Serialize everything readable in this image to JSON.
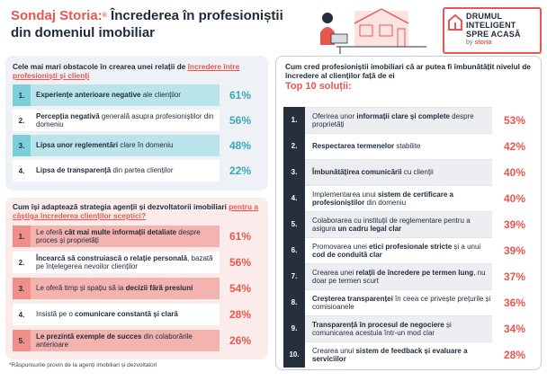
{
  "header": {
    "brand": "Sondaj Storia:",
    "brand_mark": "®",
    "title_rest": " Încrederea în profesioniștii",
    "title_line2": "din domeniul imobiliar"
  },
  "logo": {
    "line1": "DRUMUL",
    "line2": "INTELIGENT",
    "line3": "SPRE ACASĂ",
    "by": "by",
    "brand": "storia"
  },
  "obstacles": {
    "question_pre": "Cele mai mari obstacole în crearea unei relații de ",
    "question_hl": "încredere între profesioniști și clienți",
    "items": [
      {
        "num": "1.",
        "bold": "Experiențe anterioare negative",
        "rest": " ale clienților",
        "pct": "61%"
      },
      {
        "num": "2.",
        "bold": "Percepția negativă",
        "rest": " generală asupra profesioniștilor din domeniu",
        "pct": "56%"
      },
      {
        "num": "3.",
        "bold": "Lipsa unor reglementări",
        "rest": " clare în domeniu",
        "pct": "48%"
      },
      {
        "num": "4.",
        "bold": "Lipsa de transparență",
        "rest": " din partea clienților",
        "pct": "22%"
      }
    ]
  },
  "strategy": {
    "question_pre": "Cum își adaptează strategia agenții și dezvoltatorii imobiliari ",
    "question_hl": "pentru a câștiga încrederea clienților sceptici?",
    "items": [
      {
        "num": "1.",
        "pre": "Le oferă ",
        "bold": "cât mai multe informații detaliate",
        "rest": " despre proces și proprietăți",
        "pct": "61%"
      },
      {
        "num": "2.",
        "pre": "",
        "bold": "Încearcă să construiască o relație personală",
        "rest": ", bazată pe înțelegerea nevoilor clienților",
        "pct": "56%"
      },
      {
        "num": "3.",
        "pre": "Le oferă timp și spațiu să ia ",
        "bold": "decizii fără presiuni",
        "rest": "",
        "pct": "54%"
      },
      {
        "num": "4.",
        "pre": "Insistă pe o ",
        "bold": "comunicare constantă și clară",
        "rest": "",
        "pct": "28%"
      },
      {
        "num": "5.",
        "pre": "",
        "bold": "Le prezintă exemple de succes",
        "rest": " din colaborările anterioare",
        "pct": "26%"
      }
    ]
  },
  "solutions": {
    "question": "Cum cred profesioniștii imobiliari că ar putea fi îmbunătățit nivelul de încredere al clienților față de ei",
    "top_label": "Top 10 soluții:",
    "items": [
      {
        "num": "1.",
        "pre": "Oferirea unor ",
        "bold": "informații clare și complete",
        "rest": " despre proprietăți",
        "pct": "53%"
      },
      {
        "num": "2.",
        "pre": "",
        "bold": "Respectarea termenelor",
        "rest": " stabilite",
        "pct": "42%"
      },
      {
        "num": "3.",
        "pre": "",
        "bold": "Îmbunătățirea comunicării",
        "rest": " cu clienții",
        "pct": "40%"
      },
      {
        "num": "4.",
        "pre": "Implementarea unui ",
        "bold": "sistem de certificare a profesioniștilor",
        "rest": " din domeniu",
        "pct": "40%"
      },
      {
        "num": "5.",
        "pre": "Colaborarea cu instituții de reglementare pentru a asigura ",
        "bold": "un cadru legal clar",
        "rest": "",
        "pct": "39%"
      },
      {
        "num": "6.",
        "pre": "Promovarea unei ",
        "bold": "etici profesionale stricte",
        "rest": " și a unui ",
        "bold2": "cod de conduită clar",
        "pct": "39%"
      },
      {
        "num": "7.",
        "pre": "Crearea unei ",
        "bold": "relații de încredere pe termen lung",
        "rest": ", nu doar pe termen scurt",
        "pct": "37%"
      },
      {
        "num": "8.",
        "pre": "",
        "bold": "Creșterea transparenței",
        "rest": " în ceea ce privește prețurile și comisioanele",
        "pct": "36%"
      },
      {
        "num": "9.",
        "pre": "",
        "bold": "Transparență în procesul de negociere",
        "rest": " și comunicarea acestuia într-un mod clar",
        "pct": "34%"
      },
      {
        "num": "10.",
        "pre": "Crearea unui ",
        "bold": "sistem de feedback și evaluare a serviciilor",
        "rest": "",
        "pct": "28%"
      }
    ]
  },
  "footnote": "*Răspunsurile provin de la agenți imobiliari și dezvoltatori",
  "colors": {
    "accent": "#e8574f",
    "teal": "#3aa9b8",
    "dark": "#26303d"
  }
}
